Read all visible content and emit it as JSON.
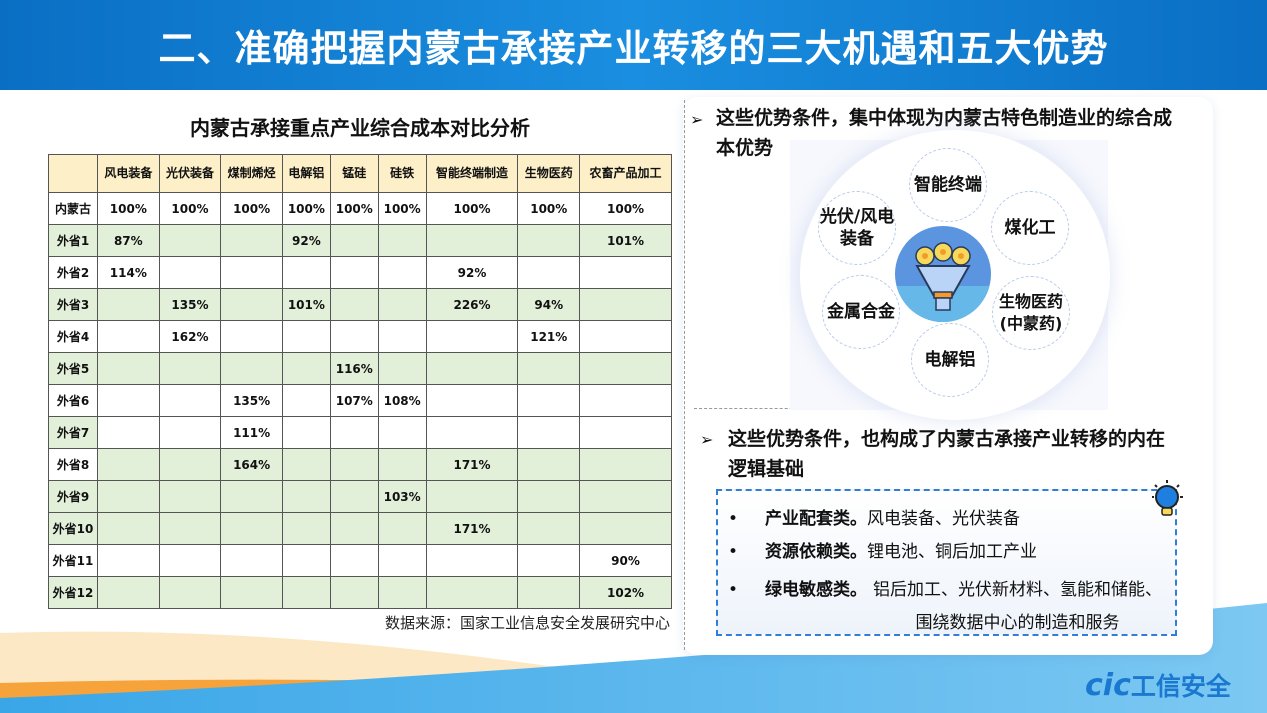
{
  "title": "二、准确把握内蒙古承接产业转移的三大机遇和五大优势",
  "table": {
    "title": "内蒙古承接重点产业综合成本对比分析",
    "headers": [
      "",
      "风电装备",
      "光伏装备",
      "煤制烯烃",
      "电解铝",
      "锰硅",
      "硅铁",
      "智能终端制造",
      "生物医药",
      "农畜产品加工"
    ],
    "rows": [
      {
        "label": "内蒙古",
        "cells": [
          "100%",
          "100%",
          "100%",
          "100%",
          "100%",
          "100%",
          "100%",
          "100%",
          "100%"
        ]
      },
      {
        "label": "外省1",
        "cells": [
          "87%",
          "",
          "",
          "92%",
          "",
          "",
          "",
          "",
          "101%"
        ]
      },
      {
        "label": "外省2",
        "cells": [
          "114%",
          "",
          "",
          "",
          "",
          "",
          "92%",
          "",
          ""
        ]
      },
      {
        "label": "外省3",
        "cells": [
          "",
          "135%",
          "",
          "101%",
          "",
          "",
          "226%",
          "94%",
          ""
        ]
      },
      {
        "label": "外省4",
        "cells": [
          "",
          "162%",
          "",
          "",
          "",
          "",
          "",
          "121%",
          ""
        ]
      },
      {
        "label": "外省5",
        "cells": [
          "",
          "",
          "",
          "",
          "116%",
          "",
          "",
          "",
          ""
        ]
      },
      {
        "label": "外省6",
        "cells": [
          "",
          "",
          "135%",
          "",
          "107%",
          "108%",
          "",
          "",
          ""
        ]
      },
      {
        "label": "外省7",
        "cells": [
          "",
          "",
          "111%",
          "",
          "",
          "",
          "",
          "",
          ""
        ]
      },
      {
        "label": "外省8",
        "cells": [
          "",
          "",
          "164%",
          "",
          "",
          "",
          "171%",
          "",
          ""
        ]
      },
      {
        "label": "外省9",
        "cells": [
          "",
          "",
          "",
          "",
          "",
          "103%",
          "",
          "",
          ""
        ]
      },
      {
        "label": "外省10",
        "cells": [
          "",
          "",
          "",
          "",
          "",
          "",
          "171%",
          "",
          ""
        ]
      },
      {
        "label": "外省11",
        "cells": [
          "",
          "",
          "",
          "",
          "",
          "",
          "",
          "",
          "90%"
        ]
      },
      {
        "label": "外省12",
        "cells": [
          "",
          "",
          "",
          "",
          "",
          "",
          "",
          "",
          "102%"
        ]
      }
    ],
    "source": "数据来源：国家工业信息安全发展研究中心"
  },
  "panel": {
    "heading1": "这些优势条件，集中体现为内蒙古特色制造业的综合成本优势",
    "diagram": [
      "智能终端",
      "煤化工",
      "生物医药(中蒙药)",
      "电解铝",
      "金属合金",
      "光伏/风电装备"
    ],
    "heading2": "这些优势条件，也构成了内蒙古承接产业转移的内在逻辑基础",
    "items": [
      {
        "bold": "产业配套类。",
        "text": "风电装备、光伏装备"
      },
      {
        "bold": "资源依赖类。",
        "text": "锂电池、铜后加工产业"
      },
      {
        "bold": "绿电敏感类。",
        "text": "铝后加工、光伏新材料、氢能和储能、围绕数据中心的制造和服务"
      }
    ]
  },
  "logo": {
    "mark": "cic",
    "text": "工信安全"
  },
  "colors": {
    "title_bar": "#0a6fc4",
    "header_fill": "#fdf0c8",
    "row_fill": "#e3f0d9",
    "accent": "#2f7fd6"
  }
}
